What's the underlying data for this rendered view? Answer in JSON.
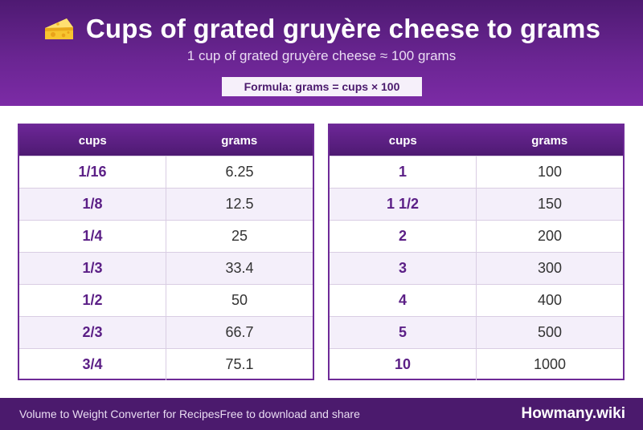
{
  "header": {
    "icon": "cheese-icon",
    "title": "Cups of grated gruyère cheese to grams",
    "subtitle": "1 cup of grated gruyère cheese ≈ 100 grams",
    "formula": "Formula: grams = cups × 100"
  },
  "tables": {
    "left": {
      "col_cups": "cups",
      "col_grams": "grams",
      "rows": [
        {
          "cups": "1/16",
          "grams": "6.25"
        },
        {
          "cups": "1/8",
          "grams": "12.5"
        },
        {
          "cups": "1/4",
          "grams": "25"
        },
        {
          "cups": "1/3",
          "grams": "33.4"
        },
        {
          "cups": "1/2",
          "grams": "50"
        },
        {
          "cups": "2/3",
          "grams": "66.7"
        },
        {
          "cups": "3/4",
          "grams": "75.1"
        }
      ]
    },
    "right": {
      "col_cups": "cups",
      "col_grams": "grams",
      "rows": [
        {
          "cups": "1",
          "grams": "100"
        },
        {
          "cups": "1 1/2",
          "grams": "150"
        },
        {
          "cups": "2",
          "grams": "200"
        },
        {
          "cups": "3",
          "grams": "300"
        },
        {
          "cups": "4",
          "grams": "400"
        },
        {
          "cups": "5",
          "grams": "500"
        },
        {
          "cups": "10",
          "grams": "1000"
        }
      ]
    }
  },
  "footer": {
    "converter_text": "Volume to Weight Converter for Recipes",
    "share_text": "Free to download and share",
    "brand": "Howmany.wiki"
  },
  "colors": {
    "header_purple": "#6a2592",
    "footer_purple": "#4b1a6d",
    "accent_text": "#5b1f86"
  }
}
